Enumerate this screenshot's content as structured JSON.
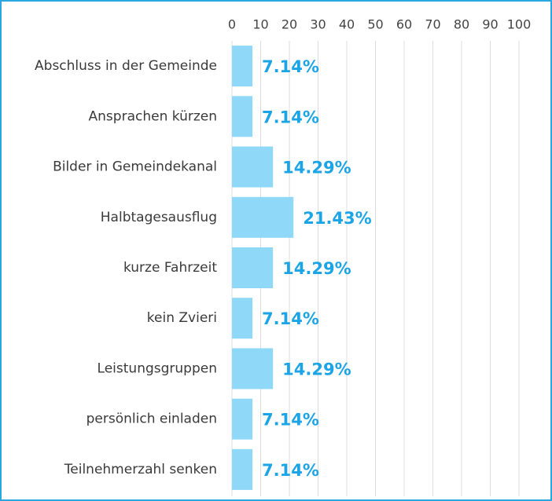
{
  "chart_data": {
    "type": "bar",
    "orientation": "horizontal",
    "categories": [
      "Abschluss in der Gemeinde",
      "Ansprachen kürzen",
      "Bilder in Gemeindekanal",
      "Halbtagesausflug",
      "kurze Fahrzeit",
      "kein Zvieri",
      "Leistungsgruppen",
      "persönlich einladen",
      "Teilnehmerzahl senken"
    ],
    "values": [
      7.14,
      7.14,
      14.29,
      21.43,
      14.29,
      7.14,
      14.29,
      7.14,
      7.14
    ],
    "value_labels": [
      "7.14%",
      "7.14%",
      "14.29%",
      "21.43%",
      "14.29%",
      "7.14%",
      "14.29%",
      "7.14%",
      "7.14%"
    ],
    "color": "#8fd8f7",
    "label_color": "#1ba4e6",
    "xlim": [
      0,
      100
    ],
    "xticks": [
      0,
      10,
      20,
      30,
      40,
      50,
      60,
      70,
      80,
      90,
      100
    ],
    "grid": true
  }
}
